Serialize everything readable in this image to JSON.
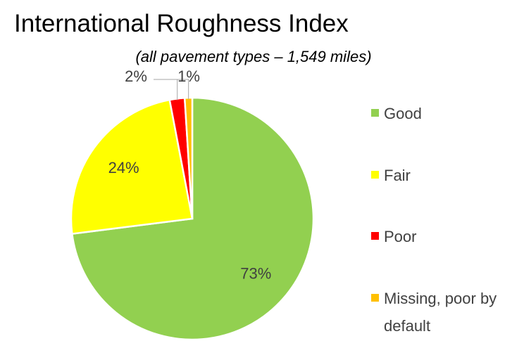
{
  "chart_data": {
    "type": "pie",
    "title": "International Roughness Index",
    "subtitle": "(all pavement types – 1,549 miles)",
    "categories": [
      "Good",
      "Fair",
      "Poor",
      "Missing, poor by default"
    ],
    "values": [
      73,
      24,
      2,
      1
    ],
    "value_labels": [
      "73%",
      "24%",
      "2%",
      "1%"
    ],
    "colors": [
      "#92d050",
      "#ffff00",
      "#ff0000",
      "#ffc000"
    ],
    "legend": "right"
  }
}
